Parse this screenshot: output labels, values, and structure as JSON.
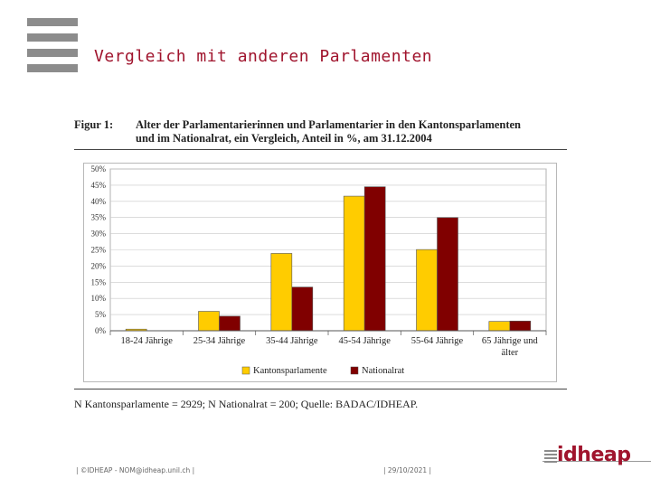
{
  "slide": {
    "title": "Vergleich mit anderen Parlamenten"
  },
  "figure": {
    "label": "Figur 1:",
    "caption_line1": "Alter der Parlamentarierinnen und Parlamentarier in den Kantonsparlamenten",
    "caption_line2": "und im Nationalrat, ein Vergleich, Anteil in %, am 31.12.2004",
    "note": "N Kantonsparlamente = 2929; N Nationalrat = 200; Quelle: BADAC/IDHEAP."
  },
  "footer": {
    "left_text": "| ©IDHEAP - NOM@idheap.unil.ch |",
    "date_text": "| 29/10/2021 |",
    "logo_text": "idheap"
  },
  "colors": {
    "accent": "#a0142d",
    "series_kantonsparlamente": "#ffcc00",
    "series_nationalrat": "#800000",
    "bar_outline": "#555555",
    "grid": "#c8c8c8"
  },
  "chart_data": {
    "type": "bar",
    "title": "Alter der Parlamentarierinnen und Parlamentarier in den Kantonsparlamenten und im Nationalrat, ein Vergleich, Anteil in %, am 31.12.2004",
    "xlabel": "",
    "ylabel": "",
    "ylim": [
      0,
      50
    ],
    "yticks": [
      0,
      5,
      10,
      15,
      20,
      25,
      30,
      35,
      40,
      45,
      50
    ],
    "ytick_labels": [
      "0%",
      "5%",
      "10%",
      "15%",
      "20%",
      "25%",
      "30%",
      "35%",
      "40%",
      "45%",
      "50%"
    ],
    "categories": [
      [
        "18-24 Jährige"
      ],
      [
        "25-34 Jährige"
      ],
      [
        "35-44 Jährige"
      ],
      [
        "45-54 Jährige"
      ],
      [
        "55-64 Jährige"
      ],
      [
        "65 Jährige und",
        "älter"
      ]
    ],
    "series": [
      {
        "name": "Kantonsparlamente",
        "values": [
          0.5,
          6.0,
          23.9,
          41.6,
          25.1,
          2.9
        ]
      },
      {
        "name": "Nationalrat",
        "values": [
          0.0,
          4.5,
          13.5,
          44.5,
          35.0,
          3.0
        ]
      }
    ],
    "legend_position": "bottom-center",
    "grid": true
  }
}
